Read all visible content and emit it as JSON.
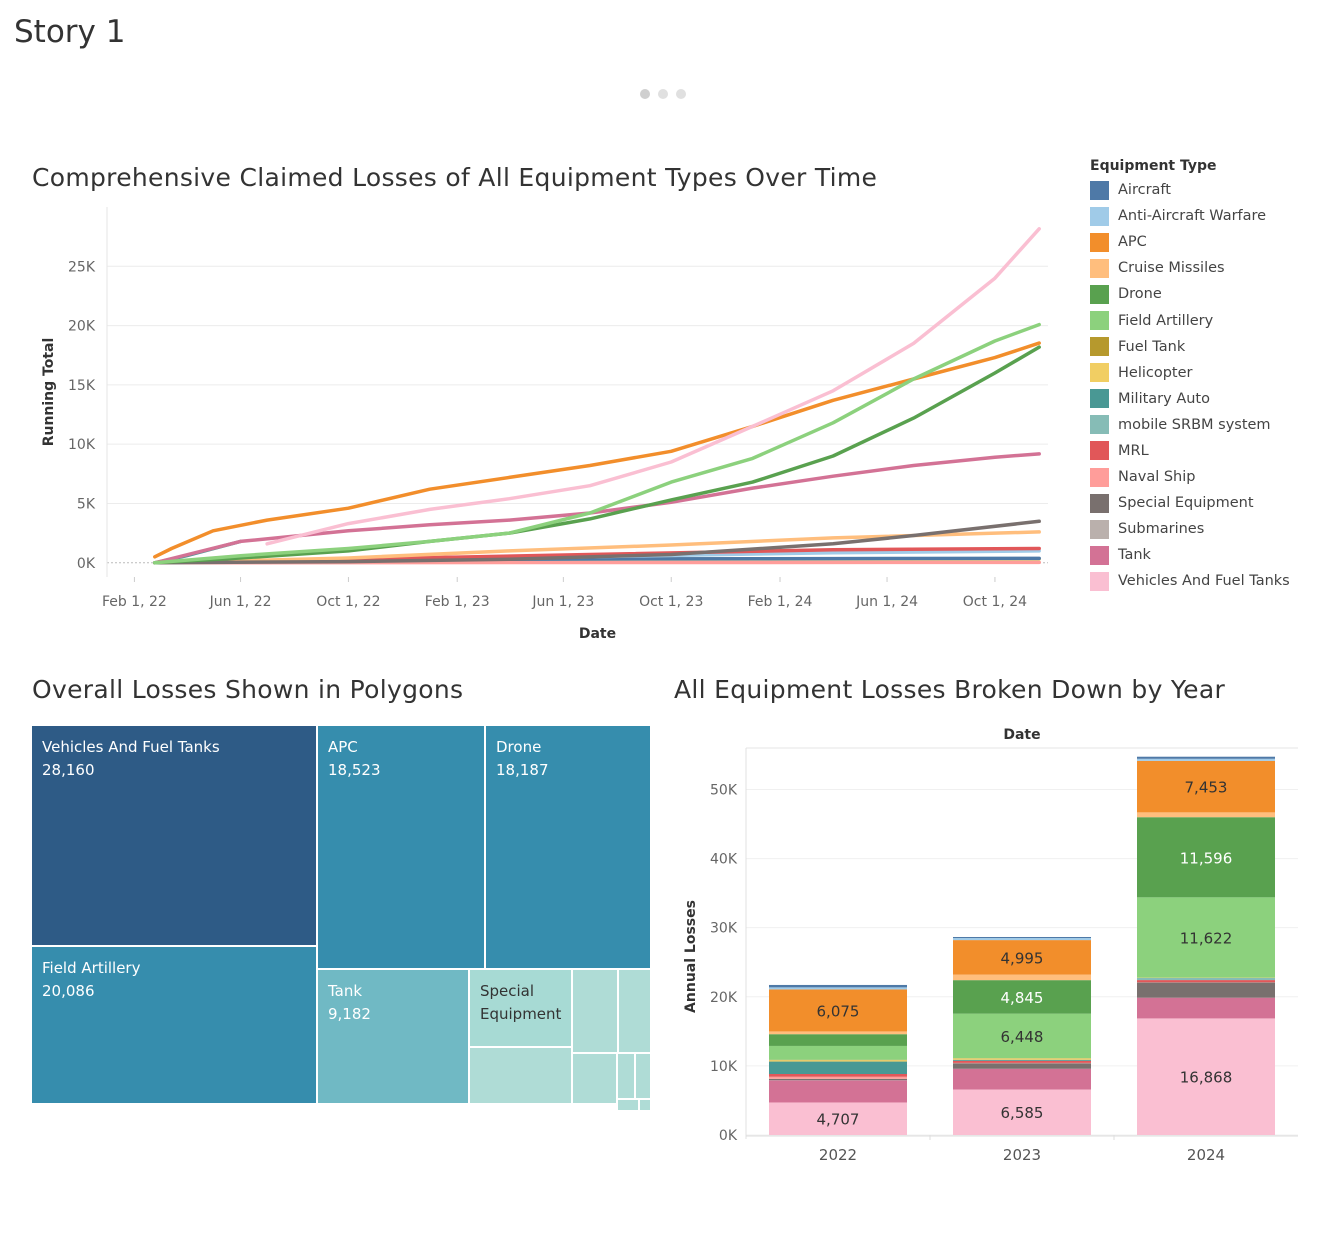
{
  "story_title": "Story 1",
  "nav_dots": 3,
  "legend": {
    "title": "Equipment Type",
    "items": [
      {
        "label": "Aircraft",
        "color": "#4e79a7"
      },
      {
        "label": "Anti-Aircraft Warfare",
        "color": "#a0cbe8"
      },
      {
        "label": "APC",
        "color": "#f28e2b"
      },
      {
        "label": "Cruise Missiles",
        "color": "#ffbe7d"
      },
      {
        "label": "Drone",
        "color": "#59a14f"
      },
      {
        "label": "Field Artillery",
        "color": "#8cd17d"
      },
      {
        "label": "Fuel Tank",
        "color": "#b6992d"
      },
      {
        "label": "Helicopter",
        "color": "#f1ce63"
      },
      {
        "label": "Military Auto",
        "color": "#499894"
      },
      {
        "label": "mobile SRBM system",
        "color": "#86bcb6"
      },
      {
        "label": "MRL",
        "color": "#e15759"
      },
      {
        "label": "Naval Ship",
        "color": "#ff9d9a"
      },
      {
        "label": "Special Equipment",
        "color": "#79706e"
      },
      {
        "label": "Submarines",
        "color": "#bab0ac"
      },
      {
        "label": "Tank",
        "color": "#d37295"
      },
      {
        "label": "Vehicles And Fuel Tanks",
        "color": "#fabfd2"
      }
    ]
  },
  "chart_data": [
    {
      "type": "line",
      "title": "Comprehensive Claimed Losses of All Equipment Types Over Time",
      "xlabel": "Date",
      "ylabel": "Running Total",
      "x_ticks": [
        "Feb 1, 22",
        "Jun 1, 22",
        "Oct 1, 22",
        "Feb 1, 23",
        "Jun 1, 23",
        "Oct 1, 23",
        "Feb 1, 24",
        "Jun 1, 24",
        "Oct 1, 24"
      ],
      "y_ticks": [
        "0K",
        "5K",
        "10K",
        "15K",
        "20K",
        "25K"
      ],
      "xlim": [
        "2022-01-01",
        "2024-11-30"
      ],
      "ylim": [
        -1200,
        30000
      ],
      "series": [
        {
          "name": "Vehicles And Fuel Tanks",
          "color": "#fabfd2",
          "points": [
            [
              "2022-07-01",
              1600
            ],
            [
              "2022-10-01",
              3300
            ],
            [
              "2023-01-01",
              4500
            ],
            [
              "2023-04-01",
              5400
            ],
            [
              "2023-07-01",
              6500
            ],
            [
              "2023-10-01",
              8500
            ],
            [
              "2024-01-01",
              11500
            ],
            [
              "2024-04-01",
              14500
            ],
            [
              "2024-07-01",
              18500
            ],
            [
              "2024-10-01",
              24000
            ],
            [
              "2024-11-20",
              28160
            ]
          ]
        },
        {
          "name": "Field Artillery",
          "color": "#8cd17d",
          "points": [
            [
              "2022-02-24",
              0
            ],
            [
              "2022-06-01",
              600
            ],
            [
              "2022-10-01",
              1200
            ],
            [
              "2023-01-01",
              1800
            ],
            [
              "2023-04-01",
              2500
            ],
            [
              "2023-07-01",
              4200
            ],
            [
              "2023-10-01",
              6800
            ],
            [
              "2024-01-01",
              8800
            ],
            [
              "2024-04-01",
              11800
            ],
            [
              "2024-07-01",
              15500
            ],
            [
              "2024-10-01",
              18700
            ],
            [
              "2024-11-20",
              20086
            ]
          ]
        },
        {
          "name": "APC",
          "color": "#f28e2b",
          "points": [
            [
              "2022-02-24",
              500
            ],
            [
              "2022-03-15",
              1200
            ],
            [
              "2022-05-01",
              2700
            ],
            [
              "2022-07-01",
              3600
            ],
            [
              "2022-10-01",
              4600
            ],
            [
              "2023-01-01",
              6200
            ],
            [
              "2023-04-01",
              7200
            ],
            [
              "2023-07-01",
              8200
            ],
            [
              "2023-10-01",
              9400
            ],
            [
              "2024-01-01",
              11500
            ],
            [
              "2024-04-01",
              13700
            ],
            [
              "2024-07-01",
              15500
            ],
            [
              "2024-10-01",
              17300
            ],
            [
              "2024-11-20",
              18523
            ]
          ]
        },
        {
          "name": "Drone",
          "color": "#59a14f",
          "points": [
            [
              "2022-02-24",
              0
            ],
            [
              "2022-06-01",
              400
            ],
            [
              "2022-10-01",
              1000
            ],
            [
              "2023-01-01",
              1800
            ],
            [
              "2023-04-01",
              2500
            ],
            [
              "2023-07-01",
              3700
            ],
            [
              "2023-10-01",
              5300
            ],
            [
              "2024-01-01",
              6800
            ],
            [
              "2024-04-01",
              9000
            ],
            [
              "2024-07-01",
              12200
            ],
            [
              "2024-10-01",
              16000
            ],
            [
              "2024-11-20",
              18187
            ]
          ]
        },
        {
          "name": "Tank",
          "color": "#d37295",
          "points": [
            [
              "2022-02-24",
              0
            ],
            [
              "2022-06-01",
              1800
            ],
            [
              "2022-10-01",
              2700
            ],
            [
              "2023-01-01",
              3200
            ],
            [
              "2023-04-01",
              3600
            ],
            [
              "2023-07-01",
              4200
            ],
            [
              "2023-10-01",
              5100
            ],
            [
              "2024-01-01",
              6300
            ],
            [
              "2024-04-01",
              7300
            ],
            [
              "2024-07-01",
              8200
            ],
            [
              "2024-10-01",
              8900
            ],
            [
              "2024-11-20",
              9182
            ]
          ]
        },
        {
          "name": "Special Equipment",
          "color": "#79706e",
          "points": [
            [
              "2022-02-24",
              0
            ],
            [
              "2022-10-01",
              100
            ],
            [
              "2023-04-01",
              300
            ],
            [
              "2023-10-01",
              700
            ],
            [
              "2024-04-01",
              1600
            ],
            [
              "2024-07-01",
              2300
            ],
            [
              "2024-11-20",
              3500
            ]
          ]
        },
        {
          "name": "Cruise Missiles",
          "color": "#ffbe7d",
          "points": [
            [
              "2022-02-24",
              0
            ],
            [
              "2022-10-01",
              400
            ],
            [
              "2023-04-01",
              1000
            ],
            [
              "2023-10-01",
              1500
            ],
            [
              "2024-04-01",
              2100
            ],
            [
              "2024-11-20",
              2600
            ]
          ]
        },
        {
          "name": "Military Auto",
          "color": "#499894",
          "points": [
            [
              "2022-02-24",
              0
            ],
            [
              "2022-04-01",
              600
            ],
            [
              "2022-06-01",
              1800
            ]
          ]
        },
        {
          "name": "MRL",
          "color": "#e15759",
          "points": [
            [
              "2022-02-24",
              0
            ],
            [
              "2022-10-01",
              300
            ],
            [
              "2023-07-01",
              700
            ],
            [
              "2024-04-01",
              1100
            ],
            [
              "2024-11-20",
              1200
            ]
          ]
        },
        {
          "name": "Anti-Aircraft Warfare",
          "color": "#a0cbe8",
          "points": [
            [
              "2022-02-24",
              0
            ],
            [
              "2022-10-01",
              250
            ],
            [
              "2023-07-01",
              500
            ],
            [
              "2024-04-01",
              850
            ],
            [
              "2024-11-20",
              1000
            ]
          ]
        },
        {
          "name": "Aircraft",
          "color": "#4e79a7",
          "points": [
            [
              "2022-02-24",
              0
            ],
            [
              "2022-10-01",
              270
            ],
            [
              "2023-07-01",
              320
            ],
            [
              "2024-04-01",
              350
            ],
            [
              "2024-11-20",
              370
            ]
          ]
        },
        {
          "name": "Helicopter",
          "color": "#f1ce63",
          "points": [
            [
              "2022-02-24",
              0
            ],
            [
              "2022-10-01",
              260
            ],
            [
              "2023-07-01",
              320
            ],
            [
              "2024-11-20",
              330
            ]
          ]
        },
        {
          "name": "Naval Ship",
          "color": "#ff9d9a",
          "points": [
            [
              "2022-02-24",
              0
            ],
            [
              "2023-07-01",
              20
            ],
            [
              "2024-11-20",
              28
            ]
          ]
        }
      ]
    },
    {
      "type": "treemap",
      "title": "Overall Losses Shown in Polygons",
      "items": [
        {
          "label": "Vehicles And Fuel Tanks",
          "value": 28160,
          "color": "#2e5b86"
        },
        {
          "label": "Field Artillery",
          "value": 20086,
          "color": "#368dad"
        },
        {
          "label": "APC",
          "value": 18523,
          "color": "#368dad"
        },
        {
          "label": "Drone",
          "value": 18187,
          "color": "#368dad"
        },
        {
          "label": "Tank",
          "value": 9182,
          "color": "#70b9c4"
        },
        {
          "label": "Special Equipment",
          "value": null,
          "color": "#a7dad4"
        },
        {
          "label": "",
          "value": null,
          "color": "#afdcd6"
        },
        {
          "label": "",
          "value": null,
          "color": "#afdcd6"
        },
        {
          "label": "",
          "value": null,
          "color": "#afdcd6"
        },
        {
          "label": "",
          "value": null,
          "color": "#afdcd6"
        },
        {
          "label": "",
          "value": null,
          "color": "#afdcd6"
        },
        {
          "label": "",
          "value": null,
          "color": "#afdcd6"
        },
        {
          "label": "",
          "value": null,
          "color": "#afdcd6"
        },
        {
          "label": "",
          "value": null,
          "color": "#afdcd6"
        }
      ]
    },
    {
      "type": "bar",
      "stacked": true,
      "title": "All Equipment Losses Broken Down by Year",
      "column_header": "Date",
      "ylabel": "Annual Losses",
      "categories": [
        "2022",
        "2023",
        "2024"
      ],
      "y_ticks": [
        "0K",
        "10K",
        "20K",
        "30K",
        "40K",
        "50K"
      ],
      "ylim": [
        0,
        56000
      ],
      "series": [
        {
          "name": "Vehicles And Fuel Tanks",
          "color": "#fabfd2",
          "values": [
            4707,
            6585,
            16868
          ],
          "labels": [
            "4,707",
            "6,585",
            "16,868"
          ]
        },
        {
          "name": "Tank",
          "color": "#d37295",
          "values": [
            3200,
            3000,
            3000
          ],
          "labels": [
            "",
            "",
            ""
          ]
        },
        {
          "name": "Submarines",
          "color": "#bab0ac",
          "values": [
            20,
            0,
            0
          ],
          "labels": [
            "",
            "",
            ""
          ]
        },
        {
          "name": "Special Equipment",
          "color": "#79706e",
          "values": [
            200,
            800,
            2200
          ],
          "labels": [
            "",
            "",
            ""
          ]
        },
        {
          "name": "Naval Ship",
          "color": "#ff9d9a",
          "values": [
            300,
            50,
            50
          ],
          "labels": [
            "",
            "",
            ""
          ]
        },
        {
          "name": "MRL",
          "color": "#e15759",
          "values": [
            400,
            300,
            300
          ],
          "labels": [
            "",
            "",
            ""
          ]
        },
        {
          "name": "mobile SRBM system",
          "color": "#86bcb6",
          "values": [
            0,
            0,
            300
          ],
          "labels": [
            "",
            "",
            ""
          ]
        },
        {
          "name": "Military Auto",
          "color": "#499894",
          "values": [
            1800,
            150,
            0
          ],
          "labels": [
            "",
            "",
            ""
          ]
        },
        {
          "name": "Helicopter",
          "color": "#f1ce63",
          "values": [
            200,
            200,
            50
          ],
          "labels": [
            "",
            "",
            ""
          ]
        },
        {
          "name": "Fuel Tank",
          "color": "#b6992d",
          "values": [
            60,
            30,
            0
          ],
          "labels": [
            "",
            "",
            ""
          ]
        },
        {
          "name": "Field Artillery",
          "color": "#8cd17d",
          "values": [
            2000,
            6448,
            11622
          ],
          "labels": [
            "",
            "6,448",
            "11,622"
          ]
        },
        {
          "name": "Drone",
          "color": "#59a14f",
          "values": [
            1700,
            4845,
            11596
          ],
          "labels": [
            "",
            "4,845",
            "11,596"
          ]
        },
        {
          "name": "Cruise Missiles",
          "color": "#ffbe7d",
          "values": [
            400,
            800,
            700
          ],
          "labels": [
            "",
            "",
            ""
          ]
        },
        {
          "name": "APC",
          "color": "#f28e2b",
          "values": [
            6075,
            4995,
            7453
          ],
          "labels": [
            "6,075",
            "4,995",
            "7,453"
          ]
        },
        {
          "name": "Anti-Aircraft Warfare",
          "color": "#a0cbe8",
          "values": [
            300,
            300,
            300
          ],
          "labels": [
            "",
            "",
            ""
          ]
        },
        {
          "name": "Aircraft",
          "color": "#4e79a7",
          "values": [
            350,
            150,
            300
          ],
          "labels": [
            "",
            "",
            ""
          ]
        }
      ]
    }
  ]
}
